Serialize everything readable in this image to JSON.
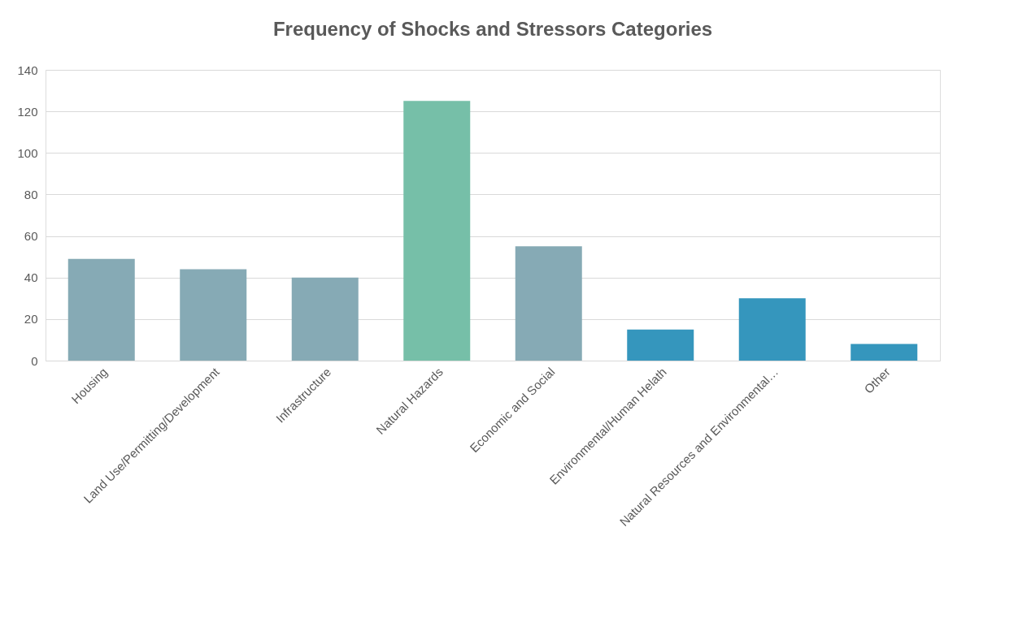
{
  "chart_data": {
    "type": "bar",
    "title": "Frequency of Shocks and Stressors Categories",
    "categories": [
      "Housing",
      "Land Use/Permitting/Development",
      "Infrastructure",
      "Natural Hazards",
      "Economic and Social",
      "Environmental/Human Helath",
      "Natural Resources and Environmental…",
      "Other"
    ],
    "values": [
      49,
      44,
      40,
      125,
      55,
      15,
      30,
      8
    ],
    "colors": [
      "#86aab5",
      "#86aab5",
      "#86aab5",
      "#76bfa8",
      "#86aab5",
      "#3596bd",
      "#3596bd",
      "#3596bd"
    ],
    "ylim": [
      0,
      140
    ],
    "yticks": [
      0,
      20,
      40,
      60,
      80,
      100,
      120,
      140
    ],
    "grid": "y"
  }
}
